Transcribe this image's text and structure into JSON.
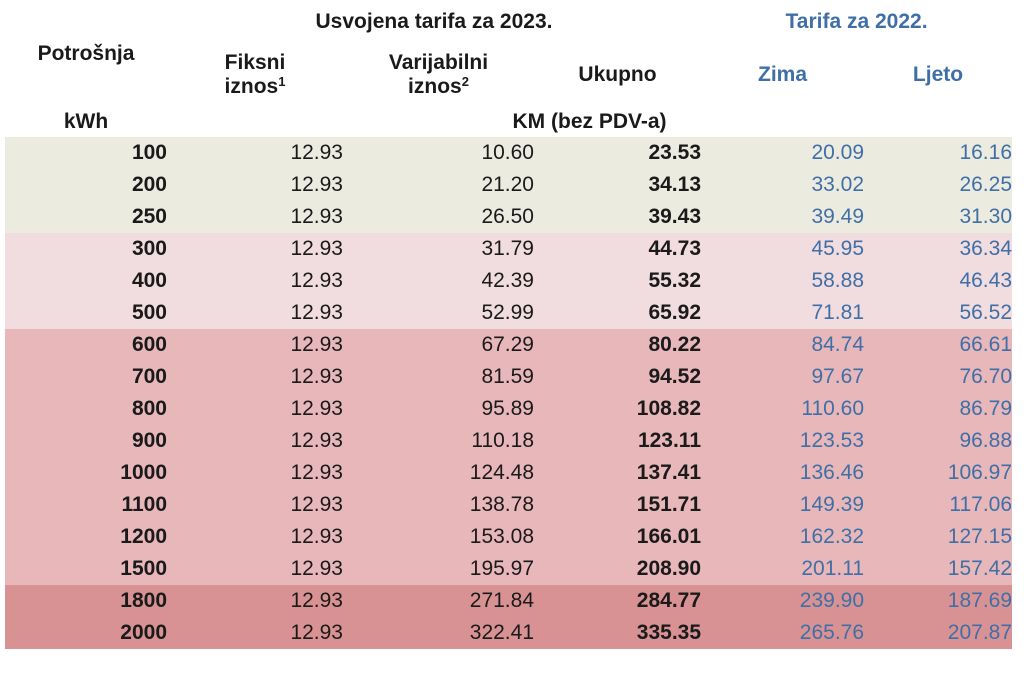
{
  "header": {
    "potrosnja": "Potrošnja",
    "usvojena": "Usvojena tarifa za 2023.",
    "tarifa2022": "Tarifa za 2022.",
    "fiksni_line1": "Fiksni",
    "fiksni_line2": "iznos",
    "fiksni_sup": "1",
    "varijabilni_line1": "Varijabilni",
    "varijabilni_line2": "iznos",
    "varijabilni_sup": "2",
    "ukupno": "Ukupno",
    "zima": "Zima",
    "ljeto": "Ljeto",
    "unit_kwh": "kWh",
    "unit_km": "KM (bez PDV-a)"
  },
  "colors": {
    "group1": "#ecebe0",
    "group2": "#f1dcdf",
    "group3": "#e7b7ba",
    "group4": "#d99293",
    "tariff2022_text": "#3f6fa6"
  },
  "rows": [
    {
      "kwh": "100",
      "fiksni": "12.93",
      "varijabilni": "10.60",
      "ukupno": "23.53",
      "zima": "20.09",
      "ljeto": "16.16",
      "group": 1
    },
    {
      "kwh": "200",
      "fiksni": "12.93",
      "varijabilni": "21.20",
      "ukupno": "34.13",
      "zima": "33.02",
      "ljeto": "26.25",
      "group": 1
    },
    {
      "kwh": "250",
      "fiksni": "12.93",
      "varijabilni": "26.50",
      "ukupno": "39.43",
      "zima": "39.49",
      "ljeto": "31.30",
      "group": 1
    },
    {
      "kwh": "300",
      "fiksni": "12.93",
      "varijabilni": "31.79",
      "ukupno": "44.73",
      "zima": "45.95",
      "ljeto": "36.34",
      "group": 2
    },
    {
      "kwh": "400",
      "fiksni": "12.93",
      "varijabilni": "42.39",
      "ukupno": "55.32",
      "zima": "58.88",
      "ljeto": "46.43",
      "group": 2
    },
    {
      "kwh": "500",
      "fiksni": "12.93",
      "varijabilni": "52.99",
      "ukupno": "65.92",
      "zima": "71.81",
      "ljeto": "56.52",
      "group": 2
    },
    {
      "kwh": "600",
      "fiksni": "12.93",
      "varijabilni": "67.29",
      "ukupno": "80.22",
      "zima": "84.74",
      "ljeto": "66.61",
      "group": 3
    },
    {
      "kwh": "700",
      "fiksni": "12.93",
      "varijabilni": "81.59",
      "ukupno": "94.52",
      "zima": "97.67",
      "ljeto": "76.70",
      "group": 3
    },
    {
      "kwh": "800",
      "fiksni": "12.93",
      "varijabilni": "95.89",
      "ukupno": "108.82",
      "zima": "110.60",
      "ljeto": "86.79",
      "group": 3
    },
    {
      "kwh": "900",
      "fiksni": "12.93",
      "varijabilni": "110.18",
      "ukupno": "123.11",
      "zima": "123.53",
      "ljeto": "96.88",
      "group": 3
    },
    {
      "kwh": "1000",
      "fiksni": "12.93",
      "varijabilni": "124.48",
      "ukupno": "137.41",
      "zima": "136.46",
      "ljeto": "106.97",
      "group": 3
    },
    {
      "kwh": "1100",
      "fiksni": "12.93",
      "varijabilni": "138.78",
      "ukupno": "151.71",
      "zima": "149.39",
      "ljeto": "117.06",
      "group": 3
    },
    {
      "kwh": "1200",
      "fiksni": "12.93",
      "varijabilni": "153.08",
      "ukupno": "166.01",
      "zima": "162.32",
      "ljeto": "127.15",
      "group": 3
    },
    {
      "kwh": "1500",
      "fiksni": "12.93",
      "varijabilni": "195.97",
      "ukupno": "208.90",
      "zima": "201.11",
      "ljeto": "157.42",
      "group": 3
    },
    {
      "kwh": "1800",
      "fiksni": "12.93",
      "varijabilni": "271.84",
      "ukupno": "284.77",
      "zima": "239.90",
      "ljeto": "187.69",
      "group": 4
    },
    {
      "kwh": "2000",
      "fiksni": "12.93",
      "varijabilni": "322.41",
      "ukupno": "335.35",
      "zima": "265.76",
      "ljeto": "207.87",
      "group": 4
    }
  ]
}
